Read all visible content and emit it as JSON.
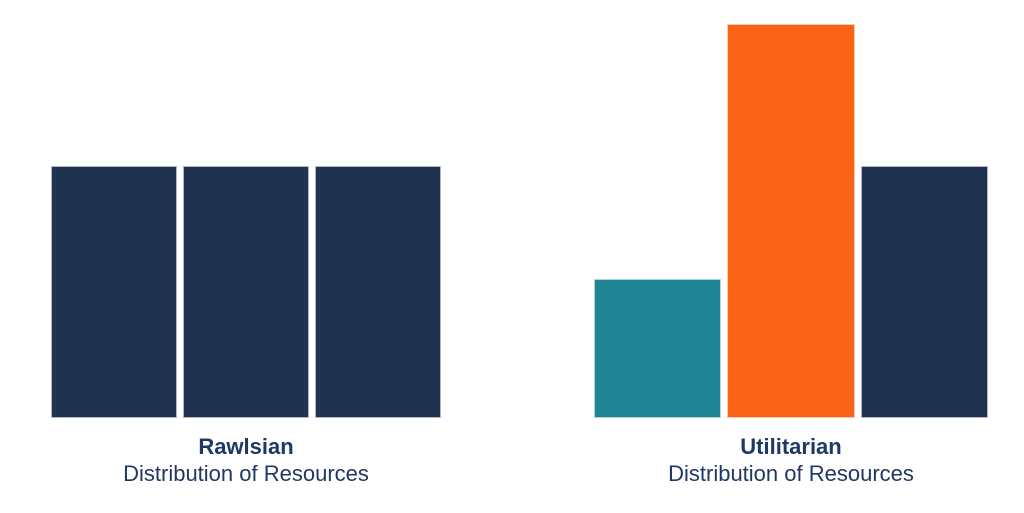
{
  "page": {
    "background_color": "#FFFFFF",
    "label_text_color": "#1F3864"
  },
  "palette": {
    "navy": "#1F3250",
    "teal": "#1F8594",
    "orange": "#F96416"
  },
  "chart_data": [
    {
      "type": "bar",
      "title": "Rawlsian",
      "subtitle": "Distribution of Resources",
      "values": [
        64,
        64,
        64
      ],
      "bar_colors": [
        "#1F3250",
        "#1F3250",
        "#1F3250"
      ],
      "value_unit": "percent_of_tallest_bar",
      "ylim": [
        0,
        100
      ],
      "xlabel": "",
      "ylabel": "",
      "axes_visible": false,
      "grid": false,
      "legend": false,
      "data_labels": false
    },
    {
      "type": "bar",
      "title": "Utilitarian",
      "subtitle": "Distribution of Resources",
      "values": [
        35.3,
        100,
        64
      ],
      "bar_colors": [
        "#1F8594",
        "#F96416",
        "#1F3250"
      ],
      "value_unit": "percent_of_tallest_bar",
      "ylim": [
        0,
        100
      ],
      "xlabel": "",
      "ylabel": "",
      "axes_visible": false,
      "grid": false,
      "legend": false,
      "data_labels": false
    }
  ]
}
